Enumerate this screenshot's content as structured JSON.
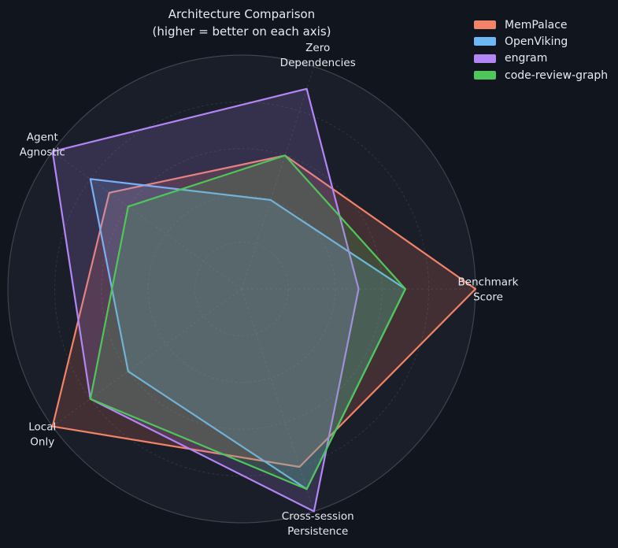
{
  "title": {
    "line1": "Architecture Comparison",
    "line2": "(higher = better on each axis)"
  },
  "chart_data": {
    "type": "radar",
    "title": "Architecture Comparison\n(higher = better on each axis)",
    "categories": [
      "Benchmark\nScore",
      "Zero\nDependencies",
      "Agent\nAgnostic",
      "Local\nOnly",
      "Cross-session\nPersistence"
    ],
    "series": [
      {
        "name": "MemPalace",
        "color": "#F28268",
        "values": [
          10,
          6,
          7,
          10,
          8
        ]
      },
      {
        "name": "OpenViking",
        "color": "#6FB7F2",
        "values": [
          7,
          4,
          8,
          6,
          9
        ]
      },
      {
        "name": "engram",
        "color": "#B286F5",
        "values": [
          5,
          9,
          10,
          8,
          10
        ]
      },
      {
        "name": "code-review-graph",
        "color": "#4FC65A",
        "values": [
          7,
          6,
          6,
          8,
          9
        ]
      }
    ],
    "rlim": [
      0,
      10
    ],
    "ring_values": [
      2,
      4,
      6,
      8,
      10
    ],
    "start_angle_deg": 0,
    "direction": "counterclockwise",
    "grid": "dashed",
    "radial_tick_labels": "none",
    "legend_position": "top-right",
    "fill_opacity": 0.18,
    "style": {
      "background": "#11151E",
      "plot_background": "#1A1E28",
      "grid_color": "#30353F",
      "outline_color": "#3E4450",
      "text_color": "#E8EAEF"
    }
  }
}
